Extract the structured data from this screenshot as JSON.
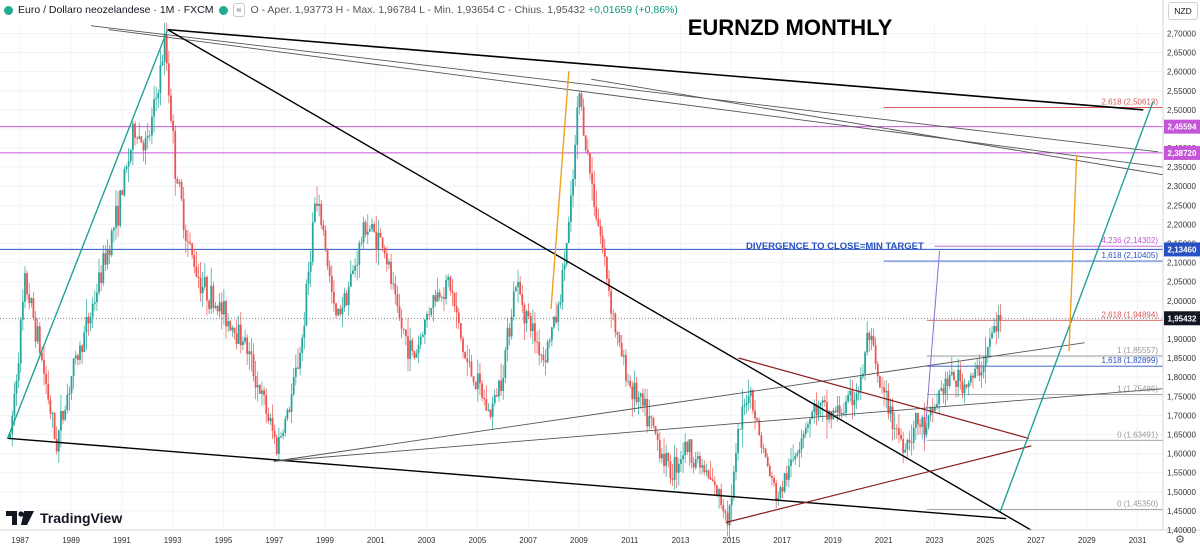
{
  "legend": {
    "symbol": "Euro / Dollaro neozelandese · 1M · FXCM",
    "icon_badge": "≈",
    "ohlc": "O - Aper. 1,93773  H - Max. 1,96784  L - Min. 1,93654  C - Chius. 1,95432",
    "change": "+0,01659 (+0,86%)"
  },
  "currency": "NZD",
  "brand": "TradingView",
  "settings_icon": "gear-icon",
  "colors": {
    "up": "#26a69a",
    "down": "#ef5350",
    "trend_black": "#000000",
    "trend_grey": "#555555",
    "teal_channel": "#22a196",
    "orange": "#f0a020",
    "purple": "#c455d6",
    "blue": "#2751c2",
    "red_level": "#d95a5a",
    "maroon": "#8b1a1a",
    "violet": "#8c6fd1",
    "grey_level": "#b0b0b0"
  },
  "chart_data": {
    "type": "candlestick",
    "title": "EURNZD MONTHLY",
    "annotation": "DIVERGENCE TO CLOSE=MIN TARGET",
    "xlim": [
      1986.2,
      2032.0
    ],
    "ylim": [
      1.4,
      2.73
    ],
    "x_ticks": [
      "1987",
      "1989",
      "1991",
      "1993",
      "1995",
      "1997",
      "1999",
      "2001",
      "2003",
      "2005",
      "2007",
      "2009",
      "2011",
      "2013",
      "2015",
      "2017",
      "2019",
      "2021",
      "2023",
      "2025",
      "2027",
      "2029",
      "2031"
    ],
    "y_ticks": [
      "2,70000",
      "2,65000",
      "2,60000",
      "2,55000",
      "2,50000",
      "2,45000",
      "2,40000",
      "2,35000",
      "2,30000",
      "2,25000",
      "2,20000",
      "2,15000",
      "2,10000",
      "2,05000",
      "2,00000",
      "1,95000",
      "1,90000",
      "1,85000",
      "1,80000",
      "1,75000",
      "1,70000",
      "1,65000",
      "1,60000",
      "1,55000",
      "1,50000",
      "1,45000",
      "1,40000"
    ],
    "price_line": {
      "value": 1.95432,
      "label": "1,95432"
    },
    "horizontal_levels": [
      {
        "value": 2.45594,
        "label": "2,45594",
        "color": "#c455d6"
      },
      {
        "value": 2.3872,
        "label": "2,38720",
        "color": "#c455d6"
      },
      {
        "value": 2.1346,
        "label": "2,13460",
        "color": "#2751c2"
      }
    ],
    "fib_levels": [
      {
        "value": 2.50613,
        "label": "2,618 (2,50613)",
        "color": "#d95a5a",
        "x_start": 2021.0
      },
      {
        "value": 2.14302,
        "label": "4,236 (2,14302)",
        "color": "#c455d6",
        "x_start": 2023.0
      },
      {
        "value": 2.10405,
        "label": "1,618 (2,10405)",
        "color": "#2751c2",
        "x_start": 2021.0
      },
      {
        "value": 1.94894,
        "label": "2,618 (1,94894)",
        "color": "#d95a5a",
        "x_start": 2022.7
      },
      {
        "value": 1.85557,
        "label": "1 (1,85557)",
        "color": "#999999",
        "x_start": 2022.7
      },
      {
        "value": 1.82899,
        "label": "1,618 (1,82899)",
        "color": "#2751c2",
        "x_start": 2022.7
      },
      {
        "value": 1.75486,
        "label": "1 (1,75486)",
        "color": "#999999",
        "x_start": 2022.7
      },
      {
        "value": 1.63491,
        "label": "0 (1,63491)",
        "color": "#999999",
        "x_start": 2022.7
      },
      {
        "value": 1.4535,
        "label": "0 (1,45350)",
        "color": "#999999",
        "x_start": 2022.7
      }
    ],
    "price_path": [
      [
        1986.6,
        1.64
      ],
      [
        1987.2,
        2.05
      ],
      [
        1987.7,
        1.9
      ],
      [
        1988.1,
        1.75
      ],
      [
        1988.4,
        1.62
      ],
      [
        1989.0,
        1.8
      ],
      [
        1989.7,
        1.95
      ],
      [
        1990.3,
        2.1
      ],
      [
        1990.9,
        2.25
      ],
      [
        1991.5,
        2.45
      ],
      [
        1992.0,
        2.4
      ],
      [
        1992.4,
        2.55
      ],
      [
        1992.7,
        2.68
      ],
      [
        1993.1,
        2.35
      ],
      [
        1993.6,
        2.15
      ],
      [
        1994.1,
        2.05
      ],
      [
        1994.6,
        2.0
      ],
      [
        1995.2,
        1.95
      ],
      [
        1995.8,
        1.9
      ],
      [
        1996.5,
        1.75
      ],
      [
        1997.1,
        1.62
      ],
      [
        1997.6,
        1.72
      ],
      [
        1998.1,
        1.9
      ],
      [
        1998.6,
        2.25
      ],
      [
        1998.9,
        2.2
      ],
      [
        1999.4,
        1.95
      ],
      [
        2000.0,
        2.05
      ],
      [
        2000.6,
        2.2
      ],
      [
        2001.3,
        2.15
      ],
      [
        2001.9,
        1.95
      ],
      [
        2002.5,
        1.85
      ],
      [
        2003.2,
        2.0
      ],
      [
        2003.9,
        2.05
      ],
      [
        2004.5,
        1.85
      ],
      [
        2005.0,
        1.78
      ],
      [
        2005.5,
        1.7
      ],
      [
        2006.0,
        1.82
      ],
      [
        2006.5,
        2.05
      ],
      [
        2007.0,
        1.95
      ],
      [
        2007.6,
        1.85
      ],
      [
        2008.2,
        1.98
      ],
      [
        2008.7,
        2.25
      ],
      [
        2009.0,
        2.55
      ],
      [
        2009.4,
        2.35
      ],
      [
        2009.9,
        2.15
      ],
      [
        2010.5,
        1.9
      ],
      [
        2011.0,
        1.78
      ],
      [
        2011.5,
        1.72
      ],
      [
        2012.0,
        1.65
      ],
      [
        2012.6,
        1.55
      ],
      [
        2013.2,
        1.62
      ],
      [
        2013.7,
        1.58
      ],
      [
        2014.4,
        1.5
      ],
      [
        2014.9,
        1.44
      ],
      [
        2015.3,
        1.65
      ],
      [
        2015.7,
        1.78
      ],
      [
        2016.2,
        1.62
      ],
      [
        2016.8,
        1.48
      ],
      [
        2017.3,
        1.56
      ],
      [
        2017.8,
        1.66
      ],
      [
        2018.3,
        1.72
      ],
      [
        2018.9,
        1.7
      ],
      [
        2019.5,
        1.72
      ],
      [
        2020.1,
        1.78
      ],
      [
        2020.4,
        1.92
      ],
      [
        2020.8,
        1.78
      ],
      [
        2021.3,
        1.7
      ],
      [
        2021.8,
        1.62
      ],
      [
        2022.3,
        1.68
      ],
      [
        2022.7,
        1.66
      ],
      [
        2023.2,
        1.76
      ],
      [
        2023.7,
        1.8
      ],
      [
        2024.2,
        1.78
      ],
      [
        2024.6,
        1.8
      ],
      [
        2025.0,
        1.85
      ],
      [
        2025.3,
        1.92
      ],
      [
        2025.6,
        1.95432
      ]
    ],
    "trendlines": [
      {
        "from": [
          2009.5,
          2.58
        ],
        "to": [
          2032.0,
          2.33
        ],
        "color": "#555555",
        "w": 0.9
      },
      {
        "from": [
          1990.5,
          2.71
        ],
        "to": [
          2032.0,
          2.35
        ],
        "color": "#555555",
        "w": 0.9
      },
      {
        "from": [
          1989.8,
          2.72
        ],
        "to": [
          2031.8,
          2.39
        ],
        "color": "#555555",
        "w": 0.9
      },
      {
        "from": [
          1992.8,
          2.71
        ],
        "to": [
          2031.2,
          2.5
        ],
        "color": "#000000",
        "w": 1.6
      },
      {
        "from": [
          1992.8,
          2.71
        ],
        "to": [
          2026.8,
          1.4
        ],
        "color": "#000000",
        "w": 1.4
      },
      {
        "from": [
          1986.5,
          1.64
        ],
        "to": [
          2025.8,
          1.43
        ],
        "color": "#000000",
        "w": 1.4
      },
      {
        "from": [
          1997.0,
          1.58
        ],
        "to": [
          2028.9,
          1.89
        ],
        "color": "#555555",
        "w": 0.9
      },
      {
        "from": [
          1997.0,
          1.58
        ],
        "to": [
          2032.0,
          1.77
        ],
        "color": "#555555",
        "w": 0.9
      },
      {
        "from": [
          2015.3,
          1.85
        ],
        "to": [
          2026.7,
          1.64
        ],
        "color": "#8b1a1a",
        "w": 1.2
      },
      {
        "from": [
          2014.8,
          1.42
        ],
        "to": [
          2026.8,
          1.62
        ],
        "color": "#8b1a1a",
        "w": 1.2
      },
      {
        "from": [
          1986.5,
          1.64
        ],
        "to": [
          1992.8,
          2.71
        ],
        "color": "#22a196",
        "w": 1.4
      },
      {
        "from": [
          2025.6,
          1.45
        ],
        "to": [
          2031.6,
          2.52
        ],
        "color": "#22a196",
        "w": 1.4
      },
      {
        "from": [
          2007.9,
          1.98
        ],
        "to": [
          2008.6,
          2.6
        ],
        "color": "#f0a020",
        "w": 1.4
      },
      {
        "from": [
          2028.3,
          1.87
        ],
        "to": [
          2028.6,
          2.38
        ],
        "color": "#f0a020",
        "w": 1.4
      },
      {
        "from": [
          2022.6,
          1.63
        ],
        "to": [
          2023.2,
          2.13
        ],
        "color": "#8c6fd1",
        "w": 1.0
      }
    ]
  }
}
